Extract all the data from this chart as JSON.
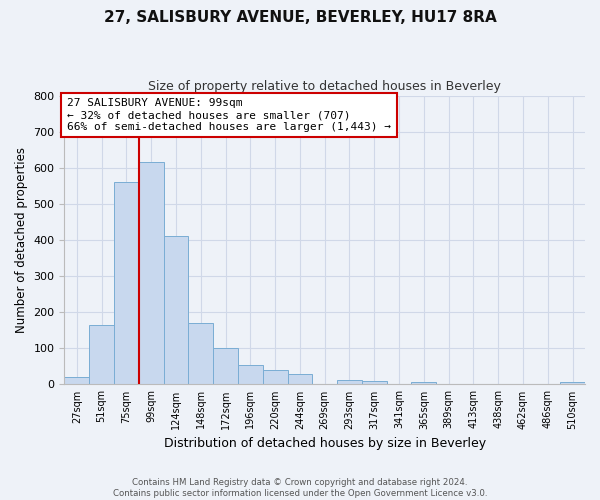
{
  "title": "27, SALISBURY AVENUE, BEVERLEY, HU17 8RA",
  "subtitle": "Size of property relative to detached houses in Beverley",
  "xlabel": "Distribution of detached houses by size in Beverley",
  "ylabel": "Number of detached properties",
  "bar_labels": [
    "27sqm",
    "51sqm",
    "75sqm",
    "99sqm",
    "124sqm",
    "148sqm",
    "172sqm",
    "196sqm",
    "220sqm",
    "244sqm",
    "269sqm",
    "293sqm",
    "317sqm",
    "341sqm",
    "365sqm",
    "389sqm",
    "413sqm",
    "438sqm",
    "462sqm",
    "486sqm",
    "510sqm"
  ],
  "bar_values": [
    20,
    165,
    560,
    615,
    410,
    170,
    100,
    53,
    40,
    30,
    0,
    13,
    9,
    0,
    6,
    0,
    0,
    0,
    0,
    0,
    8
  ],
  "bar_color": "#c8d8ee",
  "bar_edge_color": "#7aadd4",
  "vline_x_index": 3,
  "vline_color": "#cc0000",
  "ylim": [
    0,
    800
  ],
  "yticks": [
    0,
    100,
    200,
    300,
    400,
    500,
    600,
    700,
    800
  ],
  "annotation_line1": "27 SALISBURY AVENUE: 99sqm",
  "annotation_line2": "← 32% of detached houses are smaller (707)",
  "annotation_line3": "66% of semi-detached houses are larger (1,443) →",
  "annotation_box_color": "#ffffff",
  "annotation_box_edge": "#cc0000",
  "footer_text": "Contains HM Land Registry data © Crown copyright and database right 2024.\nContains public sector information licensed under the Open Government Licence v3.0.",
  "grid_color": "#d0d8e8",
  "background_color": "#eef2f8",
  "plot_bg_color": "#eef2f8",
  "title_fontsize": 11,
  "subtitle_fontsize": 9
}
